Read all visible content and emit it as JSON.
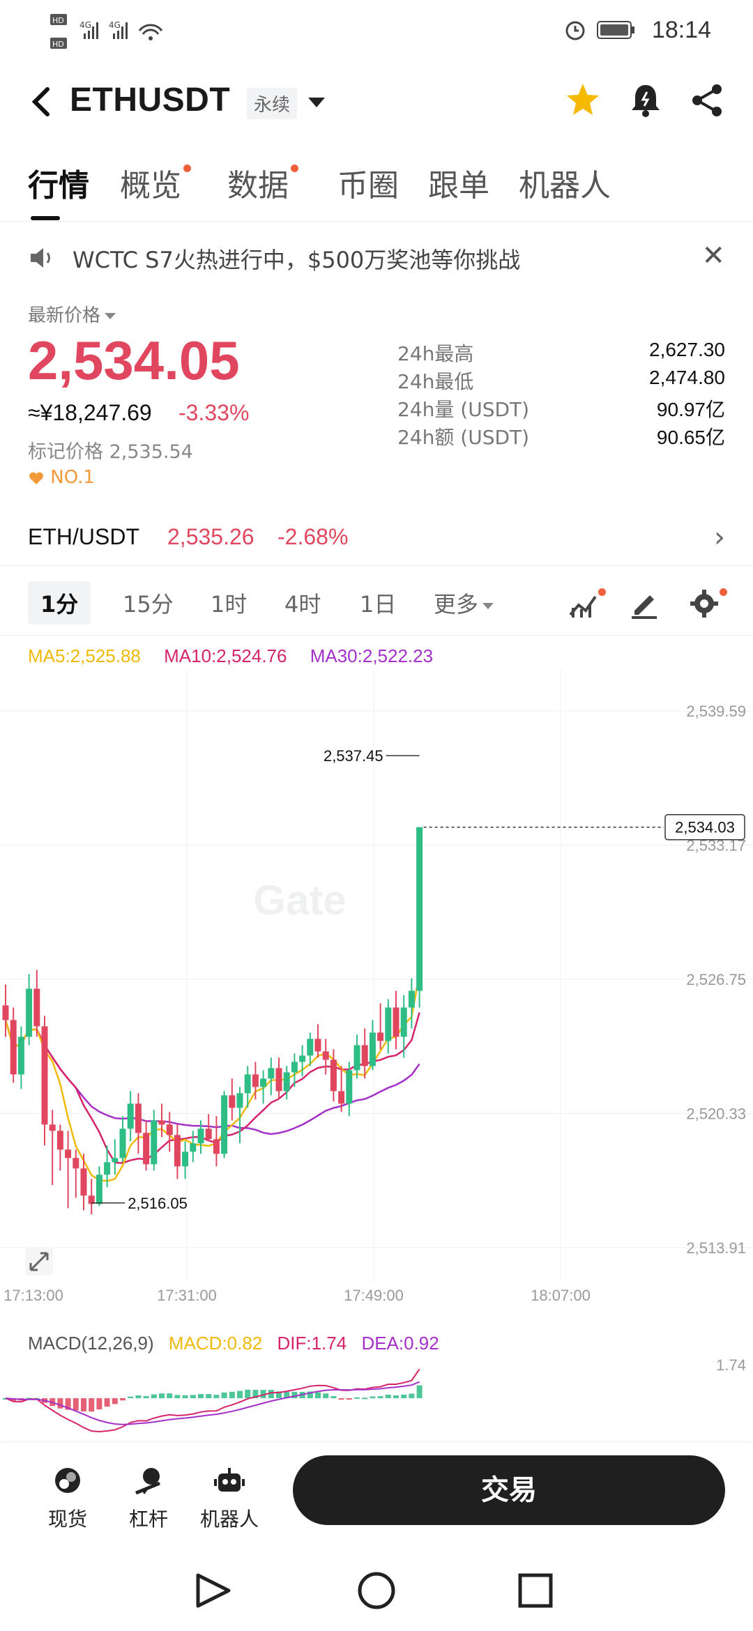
{
  "status_bar": {
    "time": "18:14",
    "signal_text": "HD 4G 4G"
  },
  "header": {
    "title": "ETHUSDT",
    "badge": "永续"
  },
  "tabs": [
    {
      "label": "行情",
      "active": true,
      "dot": false
    },
    {
      "label": "概览",
      "active": false,
      "dot": true
    },
    {
      "label": "数据",
      "active": false,
      "dot": true
    },
    {
      "label": "币圈",
      "active": false,
      "dot": false
    },
    {
      "label": "跟单",
      "active": false,
      "dot": false
    },
    {
      "label": "机器人",
      "active": false,
      "dot": false
    }
  ],
  "announcement": {
    "text": "WCTC S7火热进行中，$500万奖池等你挑战"
  },
  "price": {
    "label": "最新价格",
    "last": "2,534.05",
    "cny": "≈¥18,247.69",
    "change_pct": "-3.33%",
    "mark_label": "标记价格",
    "mark_value": "2,535.54",
    "rank": "NO.1",
    "stats": [
      {
        "k": "24h最高",
        "v": "2,627.30"
      },
      {
        "k": "24h最低",
        "v": "2,474.80"
      },
      {
        "k": "24h量 (USDT)",
        "v": "90.97亿"
      },
      {
        "k": "24h额 (USDT)",
        "v": "90.65亿"
      }
    ]
  },
  "spot": {
    "name": "ETH/USDT",
    "price": "2,535.26",
    "change": "-2.68%"
  },
  "intervals": [
    {
      "label": "1分",
      "active": true
    },
    {
      "label": "15分",
      "active": false
    },
    {
      "label": "1时",
      "active": false
    },
    {
      "label": "4时",
      "active": false
    },
    {
      "label": "1日",
      "active": false
    },
    {
      "label": "更多",
      "active": false
    }
  ],
  "ma": {
    "ma5": "MA5:2,525.88",
    "ma10": "MA10:2,524.76",
    "ma30": "MA30:2,522.23"
  },
  "colors": {
    "up": "#2ebd85",
    "down": "#e0475e",
    "ma5": "#f0b90b",
    "ma10": "#d6246c",
    "ma30": "#a52fc9",
    "accent_dot": "#f0613b"
  },
  "chart_data": {
    "type": "candlestick",
    "ylim": [
      2513.91,
      2539.59
    ],
    "y_ticks": [
      "2,539.59",
      "2,533.17",
      "2,526.75",
      "2,520.33",
      "2,513.91"
    ],
    "x_ticks": [
      "17:13:00",
      "17:31:00",
      "17:49:00",
      "18:07:00"
    ],
    "max_label": "2,537.45",
    "min_label": "2,516.05",
    "last_label": "2,534.03",
    "watermark": "Gate",
    "max_value": 2537.45,
    "min_value": 2516.05,
    "last_value": 2534.03,
    "candles": [
      [
        2525.5,
        2526.5,
        2524.0,
        2524.8
      ],
      [
        2524.8,
        2525.4,
        2521.8,
        2522.2
      ],
      [
        2522.2,
        2524.5,
        2521.5,
        2524.0
      ],
      [
        2524.0,
        2527.0,
        2523.6,
        2526.3
      ],
      [
        2526.3,
        2527.2,
        2524.0,
        2524.5
      ],
      [
        2524.5,
        2525.0,
        2518.8,
        2519.8
      ],
      [
        2519.8,
        2520.5,
        2516.9,
        2519.5
      ],
      [
        2519.5,
        2519.8,
        2517.6,
        2518.6
      ],
      [
        2518.6,
        2519.5,
        2515.8,
        2518.2
      ],
      [
        2518.2,
        2518.6,
        2516.3,
        2517.7
      ],
      [
        2517.7,
        2518.4,
        2515.7,
        2516.4
      ],
      [
        2516.4,
        2517.2,
        2515.5,
        2516.0
      ],
      [
        2516.0,
        2517.8,
        2515.9,
        2517.4
      ],
      [
        2517.4,
        2518.8,
        2516.8,
        2518.0
      ],
      [
        2518.0,
        2519.1,
        2517.4,
        2518.2
      ],
      [
        2518.2,
        2520.2,
        2518.0,
        2519.6
      ],
      [
        2519.6,
        2521.4,
        2519.0,
        2520.8
      ],
      [
        2520.8,
        2521.3,
        2518.4,
        2519.4
      ],
      [
        2519.4,
        2520.0,
        2517.6,
        2517.9
      ],
      [
        2517.9,
        2520.5,
        2517.6,
        2520.0
      ],
      [
        2520.0,
        2520.8,
        2519.2,
        2519.8
      ],
      [
        2519.8,
        2520.4,
        2518.5,
        2519.3
      ],
      [
        2519.3,
        2519.8,
        2517.2,
        2517.8
      ],
      [
        2517.8,
        2519.0,
        2517.2,
        2518.5
      ],
      [
        2518.5,
        2519.5,
        2518.0,
        2518.9
      ],
      [
        2518.9,
        2520.0,
        2518.4,
        2519.6
      ],
      [
        2519.6,
        2520.3,
        2519.0,
        2519.1
      ],
      [
        2519.1,
        2520.2,
        2517.8,
        2518.4
      ],
      [
        2518.4,
        2521.4,
        2518.2,
        2521.2
      ],
      [
        2521.2,
        2522.0,
        2520.0,
        2520.6
      ],
      [
        2520.6,
        2521.6,
        2518.9,
        2521.3
      ],
      [
        2521.3,
        2522.6,
        2520.6,
        2522.2
      ],
      [
        2522.2,
        2522.8,
        2521.0,
        2521.6
      ],
      [
        2521.6,
        2522.4,
        2520.8,
        2522.0
      ],
      [
        2522.0,
        2523.0,
        2521.2,
        2522.5
      ],
      [
        2522.5,
        2523.0,
        2521.0,
        2521.4
      ],
      [
        2521.4,
        2522.6,
        2521.0,
        2522.3
      ],
      [
        2522.3,
        2523.2,
        2521.6,
        2522.8
      ],
      [
        2522.8,
        2523.6,
        2522.1,
        2523.1
      ],
      [
        2523.1,
        2524.2,
        2522.6,
        2523.9
      ],
      [
        2523.9,
        2524.6,
        2523.0,
        2523.3
      ],
      [
        2523.3,
        2523.9,
        2522.2,
        2522.9
      ],
      [
        2522.9,
        2523.4,
        2520.9,
        2521.4
      ],
      [
        2521.4,
        2522.6,
        2520.4,
        2520.8
      ],
      [
        2520.8,
        2522.8,
        2520.2,
        2522.4
      ],
      [
        2522.4,
        2524.1,
        2522.0,
        2523.6
      ],
      [
        2523.6,
        2524.4,
        2522.0,
        2522.6
      ],
      [
        2522.6,
        2524.8,
        2522.4,
        2524.2
      ],
      [
        2524.2,
        2525.6,
        2523.4,
        2523.8
      ],
      [
        2523.8,
        2525.8,
        2523.2,
        2525.4
      ],
      [
        2525.4,
        2526.2,
        2523.4,
        2524.0
      ],
      [
        2524.0,
        2526.0,
        2523.0,
        2525.4
      ],
      [
        2525.4,
        2526.8,
        2524.4,
        2526.2
      ],
      [
        2526.2,
        2534.03,
        2525.4,
        2534.03
      ]
    ]
  },
  "macd": {
    "title": "MACD(12,26,9)",
    "macd": "MACD:0.82",
    "dif": "DIF:1.74",
    "dea": "DEA:0.92",
    "top_tick": "1.74"
  },
  "bottom_nav": [
    {
      "label": "现货"
    },
    {
      "label": "杠杆"
    },
    {
      "label": "机器人"
    }
  ],
  "trade_button": "交易"
}
